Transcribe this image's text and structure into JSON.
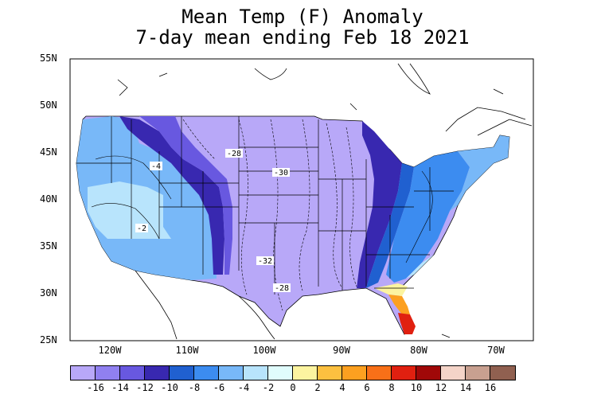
{
  "title": {
    "line1": "Mean Temp (F) Anomaly",
    "line2": "7-day mean ending Feb 18 2021"
  },
  "axes": {
    "lat_labels": [
      "55N",
      "50N",
      "45N",
      "40N",
      "35N",
      "30N",
      "25N"
    ],
    "lon_labels": [
      "120W",
      "110W",
      "100W",
      "90W",
      "80W",
      "70W"
    ]
  },
  "contour_labels": [
    "-4",
    "-28",
    "-30",
    "-2",
    "-32",
    "-28"
  ],
  "colorbar": {
    "colors": [
      "#b8a8f8",
      "#9080f0",
      "#6858e0",
      "#3828b0",
      "#2060d0",
      "#3c8cf0",
      "#78b8f8",
      "#b8e4fc",
      "#e0fcfc",
      "#fcf4a0",
      "#fcc040",
      "#fca020",
      "#f87018",
      "#e02010",
      "#a00808",
      "#f4d4c8",
      "#c8a090",
      "#906050"
    ],
    "tick_labels": [
      "-16",
      "-14",
      "-12",
      "-10",
      "-8",
      "-6",
      "-4",
      "-2",
      "0",
      "2",
      "4",
      "6",
      "8",
      "10",
      "12",
      "14",
      "16"
    ]
  }
}
